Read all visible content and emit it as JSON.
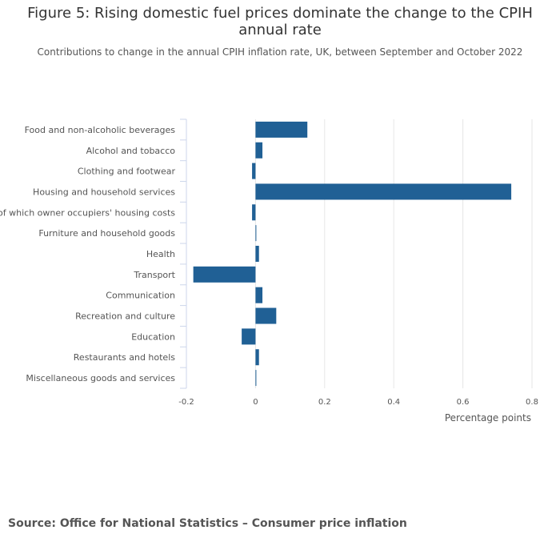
{
  "title": "Figure 5: Rising domestic fuel prices dominate the change to the CPIH annual rate",
  "subtitle": "Contributions to change in the annual CPIH inflation rate, UK, between September and October 2022",
  "source": "Source: Office for National Statistics – Consumer price inflation",
  "colors": {
    "bar": "#206095",
    "grid": "#e6e6e6",
    "axis": "#ccd6eb"
  },
  "chart_data": {
    "type": "bar",
    "orientation": "horizontal",
    "categories": [
      "Food and non-alcoholic beverages",
      "Alcohol and tobacco",
      "Clothing and footwear",
      "Housing and household services",
      "of which owner occupiers' housing costs",
      "Furniture and household goods",
      "Health",
      "Transport",
      "Communication",
      "Recreation and culture",
      "Education",
      "Restaurants and hotels",
      "Miscellaneous goods and services"
    ],
    "values": [
      0.15,
      0.02,
      -0.01,
      0.74,
      -0.01,
      0.0,
      0.01,
      -0.18,
      0.02,
      0.06,
      -0.04,
      0.01,
      0.0
    ],
    "xlim": [
      -0.2,
      0.8
    ],
    "xticks": [
      -0.2,
      0,
      0.2,
      0.4,
      0.6,
      0.8
    ],
    "xtick_labels": [
      "-0.2",
      "0",
      "0.2",
      "0.4",
      "0.6",
      "0.8"
    ],
    "xlabel": "Percentage points",
    "ylabel": "",
    "grid": true
  }
}
